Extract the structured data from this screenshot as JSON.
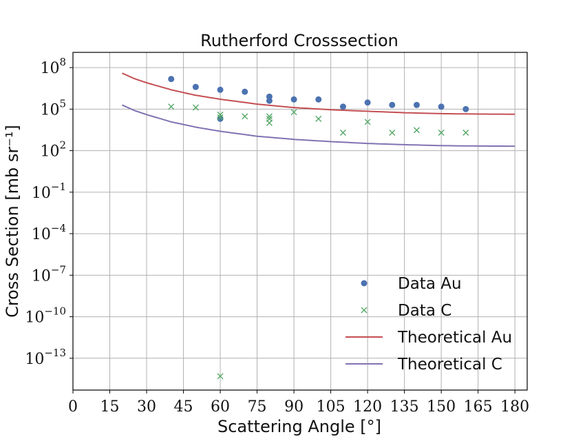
{
  "chart_data": {
    "type": "scatter",
    "title": "Rutherford Crosssection",
    "xlabel": "Scattering Angle [°]",
    "ylabel": "Cross Section [mb sr⁻¹]",
    "y_scale": "log",
    "xlim": [
      0,
      185
    ],
    "ylim_exponent": [
      -15.3,
      9.1
    ],
    "x_ticks": [
      0,
      15,
      30,
      45,
      60,
      75,
      90,
      105,
      120,
      135,
      150,
      165,
      180
    ],
    "y_tick_exponents": [
      -13,
      -10,
      -7,
      -4,
      -1,
      2,
      5,
      8
    ],
    "y_tick_base": "10",
    "grid": true,
    "legend_position": "lower-right",
    "series": [
      {
        "name": "Data Au",
        "kind": "scatter",
        "marker": "circle",
        "color": "#4c72b0",
        "points": [
          [
            40,
            15000000
          ],
          [
            50,
            4000000
          ],
          [
            60,
            2500000
          ],
          [
            60,
            20000
          ],
          [
            70,
            1800000
          ],
          [
            80,
            800000
          ],
          [
            80,
            400000
          ],
          [
            90,
            500000
          ],
          [
            100,
            500000
          ],
          [
            110,
            150000
          ],
          [
            120,
            300000
          ],
          [
            130,
            200000
          ],
          [
            140,
            200000
          ],
          [
            150,
            150000
          ],
          [
            160,
            100000
          ]
        ]
      },
      {
        "name": "Data C",
        "kind": "scatter",
        "marker": "x",
        "color": "#55a868",
        "points": [
          [
            40,
            150000
          ],
          [
            50,
            130000
          ],
          [
            60,
            40000
          ],
          [
            60,
            25000
          ],
          [
            60,
            5e-15
          ],
          [
            70,
            30000
          ],
          [
            80,
            30000
          ],
          [
            80,
            20000
          ],
          [
            80,
            10000
          ],
          [
            90,
            60000
          ],
          [
            100,
            20000
          ],
          [
            110,
            2000
          ],
          [
            120,
            12000
          ],
          [
            130,
            2000
          ],
          [
            140,
            3000
          ],
          [
            150,
            2000
          ],
          [
            160,
            2000
          ]
        ]
      },
      {
        "name": "Theoretical Au",
        "kind": "line",
        "color": "#c44e52",
        "x": [
          20,
          25,
          30,
          40,
          50,
          60,
          75,
          90,
          105,
          120,
          135,
          150,
          165,
          180
        ],
        "y": [
          40000000,
          16000000,
          8000000,
          2500000,
          1000000,
          520000,
          230000,
          130000,
          90000,
          70000,
          55000,
          47000,
          44000,
          43000
        ]
      },
      {
        "name": "Theoretical C",
        "kind": "line",
        "color": "#8172b2",
        "x": [
          20,
          25,
          30,
          40,
          50,
          60,
          75,
          90,
          105,
          120,
          135,
          150,
          165,
          180
        ],
        "y": [
          200000,
          80000,
          40000,
          12000,
          5000,
          2500,
          1100,
          650,
          450,
          330,
          270,
          230,
          215,
          210
        ]
      }
    ]
  }
}
